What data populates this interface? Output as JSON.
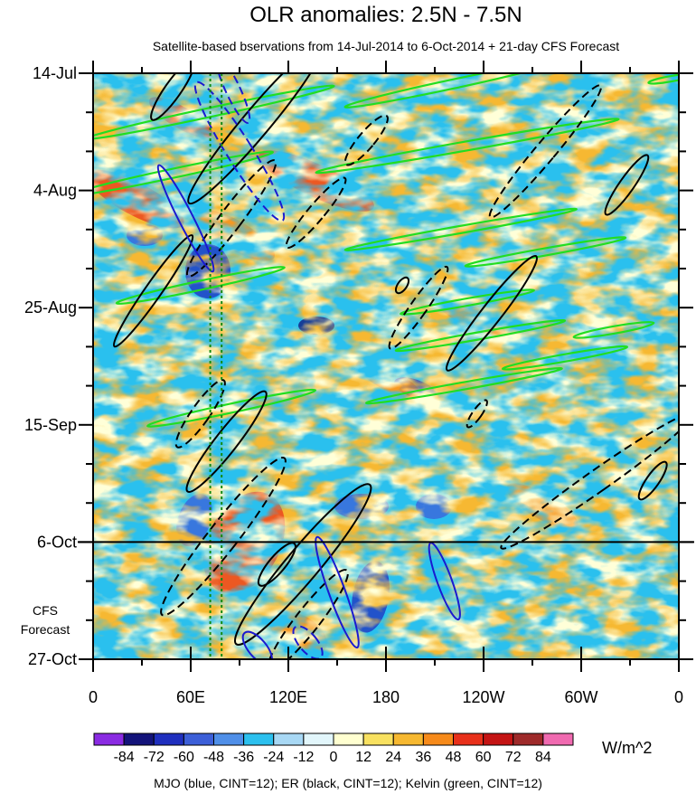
{
  "chart_data": {
    "type": "heatmap",
    "title": "OLR anomalies: 2.5N - 7.5N",
    "subtitle": "Satellite-based bservations from 14-Jul-2014 to 6-Oct-2014 + 21-day CFS Forecast",
    "x_axis": {
      "range_deg": [
        0,
        360
      ],
      "ticks": [
        {
          "deg": 0,
          "label": "0"
        },
        {
          "deg": 60,
          "label": "60E"
        },
        {
          "deg": 120,
          "label": "120E"
        },
        {
          "deg": 180,
          "label": "180"
        },
        {
          "deg": 240,
          "label": "120W"
        },
        {
          "deg": 300,
          "label": "60W"
        },
        {
          "deg": 360,
          "label": "0"
        }
      ]
    },
    "y_axis": {
      "range_days": [
        0,
        105
      ],
      "ticks": [
        {
          "day": 0,
          "label": "14-Jul"
        },
        {
          "day": 21,
          "label": "4-Aug"
        },
        {
          "day": 42,
          "label": "25-Aug"
        },
        {
          "day": 63,
          "label": "15-Sep"
        },
        {
          "day": 84,
          "label": "6-Oct"
        },
        {
          "day": 105,
          "label": "27-Oct"
        }
      ]
    },
    "forecast_start_day": 84,
    "forecast_label": [
      "CFS",
      "Forecast"
    ],
    "reference_lines_deg": [
      72,
      79
    ],
    "colorbar": {
      "units": "W/m^2",
      "levels": [
        "-84",
        "-72",
        "-60",
        "-48",
        "-36",
        "-24",
        "-12",
        "0",
        "12",
        "24",
        "36",
        "48",
        "60",
        "72",
        "84"
      ],
      "colors": [
        "#8a2be2",
        "#13137a",
        "#1f2fbe",
        "#3c5fd8",
        "#4f8fe8",
        "#2cc0ee",
        "#a8d8f4",
        "#e2f6fb",
        "#ffffd0",
        "#f8e160",
        "#f6b830",
        "#f68a1a",
        "#e8301a",
        "#c41414",
        "#9e2a2a",
        "#f06ab0"
      ]
    },
    "contours": {
      "mjo": {
        "color": "#1a1ad0",
        "cint": 12,
        "segments": [
          {
            "lon": 57,
            "day": 26,
            "rx": 8,
            "ry": 66,
            "rot": -27,
            "dash": false
          },
          {
            "lon": 90,
            "day": 14,
            "rx": 14,
            "ry": 90,
            "rot": -32,
            "dash": true
          },
          {
            "lon": 86,
            "day": 3,
            "rx": 8,
            "ry": 40,
            "rot": -25,
            "dash": true
          },
          {
            "lon": 150,
            "day": 93,
            "rx": 9,
            "ry": 65,
            "rot": -20,
            "dash": false
          },
          {
            "lon": 216,
            "day": 91,
            "rx": 8,
            "ry": 45,
            "rot": -20,
            "dash": false
          },
          {
            "lon": 101,
            "day": 103,
            "rx": 10,
            "ry": 22,
            "rot": -40,
            "dash": false
          },
          {
            "lon": 132,
            "day": 102,
            "rx": 10,
            "ry": 22,
            "rot": -40,
            "dash": true
          }
        ]
      },
      "er": {
        "color": "#000000",
        "cint": 12,
        "segments": [
          {
            "lon": 37,
            "day": 39,
            "rx": 9,
            "ry": 75,
            "rot": 35,
            "dash": false
          },
          {
            "lon": 49,
            "day": 3,
            "rx": 9,
            "ry": 40,
            "rot": 35,
            "dash": false
          },
          {
            "lon": 85,
            "day": 26,
            "rx": 12,
            "ry": 80,
            "rot": 37,
            "dash": true
          },
          {
            "lon": 100,
            "day": 9,
            "rx": 15,
            "ry": 115,
            "rot": 40,
            "dash": false
          },
          {
            "lon": 66,
            "day": 61,
            "rx": 10,
            "ry": 45,
            "rot": 35,
            "dash": true
          },
          {
            "lon": 82,
            "day": 66,
            "rx": 12,
            "ry": 70,
            "rot": 38,
            "dash": false
          },
          {
            "lon": 80,
            "day": 83,
            "rx": 16,
            "ry": 110,
            "rot": 38,
            "dash": true
          },
          {
            "lon": 129,
            "day": 88,
            "rx": 18,
            "ry": 115,
            "rot": 40,
            "dash": false
          },
          {
            "lon": 132,
            "day": 98,
            "rx": 13,
            "ry": 70,
            "rot": 38,
            "dash": true
          },
          {
            "lon": 113,
            "day": 88,
            "rx": 9,
            "ry": 30,
            "rot": 40,
            "dash": false
          },
          {
            "lon": 137,
            "day": 25,
            "rx": 9,
            "ry": 50,
            "rot": 40,
            "dash": true
          },
          {
            "lon": 200,
            "day": 42,
            "rx": 9,
            "ry": 55,
            "rot": 35,
            "dash": true
          },
          {
            "lon": 245,
            "day": 43,
            "rx": 11,
            "ry": 80,
            "rot": 38,
            "dash": false
          },
          {
            "lon": 168,
            "day": 12,
            "rx": 9,
            "ry": 35,
            "rot": 40,
            "dash": true
          },
          {
            "lon": 278,
            "day": 14,
            "rx": 11,
            "ry": 95,
            "rot": 40,
            "dash": true
          },
          {
            "lon": 328,
            "day": 20,
            "rx": 8,
            "ry": 40,
            "rot": 35,
            "dash": false
          },
          {
            "lon": 310,
            "day": 73,
            "rx": 12,
            "ry": 130,
            "rot": 55,
            "dash": true
          },
          {
            "lon": 344,
            "day": 73,
            "rx": 7,
            "ry": 25,
            "rot": 35,
            "dash": false
          },
          {
            "lon": 190,
            "day": 38,
            "rx": 5,
            "ry": 10,
            "rot": 35,
            "dash": false
          },
          {
            "lon": 236,
            "day": 61,
            "rx": 5,
            "ry": 18,
            "rot": 35,
            "dash": true
          }
        ]
      },
      "kelvin": {
        "color": "#22dd22",
        "cint": 12,
        "segments": [
          {
            "lon": 72,
            "day": 7,
            "rx": 5,
            "ry": 140,
            "rot": 78,
            "dash": false
          },
          {
            "lon": 48,
            "day": 18,
            "rx": 5,
            "ry": 115,
            "rot": 78,
            "dash": false
          },
          {
            "lon": 66,
            "day": 38,
            "rx": 5,
            "ry": 95,
            "rot": 78,
            "dash": false
          },
          {
            "lon": 85,
            "day": 60,
            "rx": 5,
            "ry": 95,
            "rot": 78,
            "dash": false
          },
          {
            "lon": 220,
            "day": 2,
            "rx": 5,
            "ry": 120,
            "rot": 78,
            "dash": false
          },
          {
            "lon": 230,
            "day": 13,
            "rx": 5,
            "ry": 170,
            "rot": 80,
            "dash": false
          },
          {
            "lon": 226,
            "day": 28,
            "rx": 4,
            "ry": 130,
            "rot": 80,
            "dash": false
          },
          {
            "lon": 278,
            "day": 32,
            "rx": 4,
            "ry": 90,
            "rot": 80,
            "dash": false
          },
          {
            "lon": 230,
            "day": 41,
            "rx": 4,
            "ry": 75,
            "rot": 80,
            "dash": false
          },
          {
            "lon": 238,
            "day": 47,
            "rx": 4,
            "ry": 95,
            "rot": 80,
            "dash": false
          },
          {
            "lon": 228,
            "day": 56,
            "rx": 4,
            "ry": 110,
            "rot": 80,
            "dash": false
          },
          {
            "lon": 290,
            "day": 51,
            "rx": 4,
            "ry": 70,
            "rot": 80,
            "dash": false
          },
          {
            "lon": 320,
            "day": 46,
            "rx": 4,
            "ry": 45,
            "rot": 80,
            "dash": false
          },
          {
            "lon": 355,
            "day": 1,
            "rx": 3,
            "ry": 25,
            "rot": 80,
            "dash": false
          }
        ]
      }
    },
    "legend_text": "MJO (blue, CINT=12); ER (black, CINT=12); Kelvin (green, CINT=12)"
  }
}
